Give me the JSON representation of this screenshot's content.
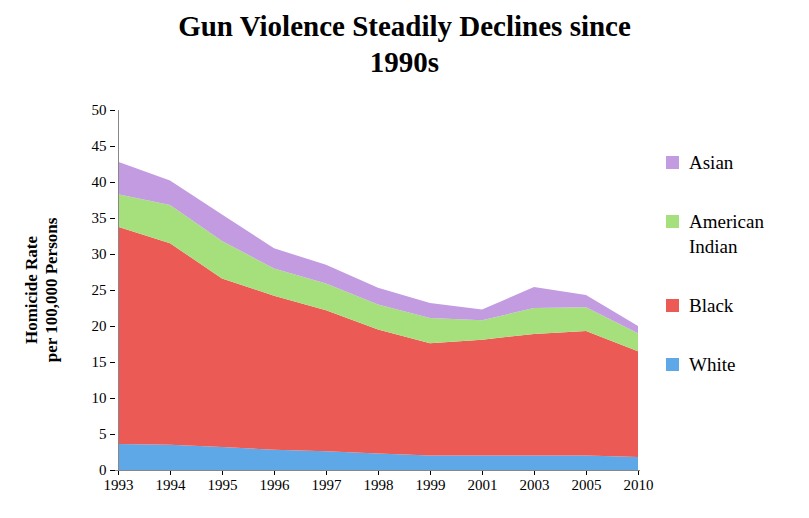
{
  "chart_data": {
    "type": "area",
    "stacked": true,
    "title": "Gun Violence Steadily Declines since 1990s",
    "y_label": [
      "Homicide Rate",
      "per 100,000 Persons"
    ],
    "categories": [
      "1993",
      "1994",
      "1995",
      "1996",
      "1997",
      "1998",
      "1999",
      "2001",
      "2003",
      "2005",
      "2010"
    ],
    "series": [
      {
        "name": "White",
        "color": "#5ea8e8",
        "values": [
          3.6,
          3.5,
          3.2,
          2.8,
          2.6,
          2.3,
          2.0,
          2.0,
          2.0,
          2.0,
          1.8
        ]
      },
      {
        "name": "Black",
        "color": "#ec5a55",
        "values": [
          30.2,
          28.0,
          23.4,
          21.4,
          19.6,
          17.2,
          15.6,
          16.1,
          16.9,
          17.3,
          14.7
        ]
      },
      {
        "name": "American Indian",
        "color": "#a6e07c",
        "values": [
          4.5,
          5.3,
          5.2,
          3.8,
          3.7,
          3.5,
          3.5,
          2.7,
          3.6,
          3.3,
          2.5
        ]
      },
      {
        "name": "Asian",
        "color": "#c39be0",
        "values": [
          4.5,
          3.4,
          3.7,
          2.8,
          2.6,
          2.3,
          2.1,
          1.5,
          2.9,
          1.7,
          1.0
        ]
      }
    ],
    "ylim": [
      0,
      50
    ],
    "yticks": [
      0,
      5,
      10,
      15,
      20,
      25,
      30,
      35,
      40,
      45,
      50
    ],
    "grid": false,
    "legend": "right"
  }
}
